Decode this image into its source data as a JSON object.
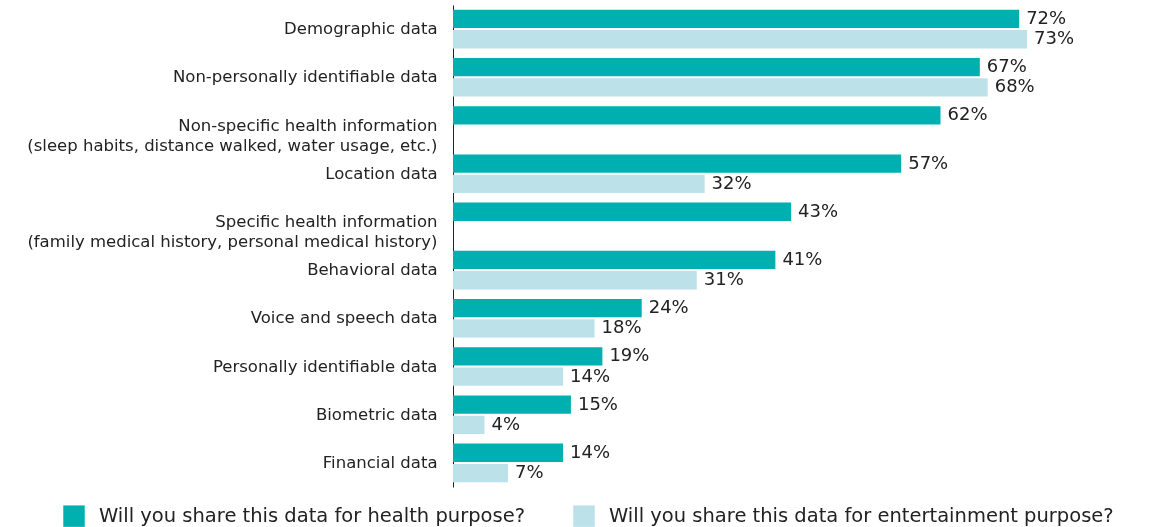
{
  "chart_data": {
    "type": "bar",
    "orientation": "horizontal",
    "legend": "bottom",
    "categories": [
      "Demographic data",
      "Non-personally identifiable data",
      "Non-specific health information\n(sleep habits, distance walked, water usage, etc.)",
      "Location data",
      "Specific health information\n(family medical history, personal medical history)",
      "Behavioral data",
      "Voice and speech data",
      "Personally identifiable data",
      "Biometric data",
      "Financial data"
    ],
    "series": [
      {
        "name": "Will you share this data for health purpose?",
        "color": "#00b0b0",
        "values": [
          72,
          67,
          62,
          57,
          43,
          41,
          24,
          19,
          15,
          14
        ],
        "value_labels": [
          "72%",
          "67%",
          "62%",
          "57%",
          "43%",
          "41%",
          "24%",
          "19%",
          "15%",
          "14%"
        ]
      },
      {
        "name": "Will you share this data for entertainment purpose?",
        "color": "#bce1e9",
        "values": [
          73,
          68,
          null,
          32,
          null,
          31,
          18,
          14,
          4,
          7
        ],
        "value_labels": [
          "73%",
          "68%",
          null,
          "32%",
          null,
          "31%",
          "18%",
          "14%",
          "4%",
          "7%"
        ]
      }
    ]
  }
}
